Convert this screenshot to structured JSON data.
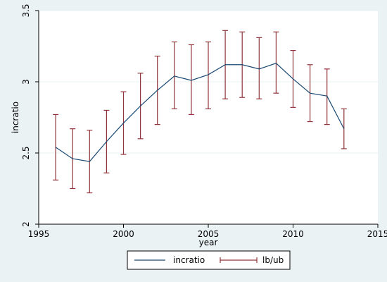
{
  "chart_data": {
    "type": "line",
    "title": "",
    "xlabel": "year",
    "ylabel": "incratio",
    "xlim": [
      1995,
      2015
    ],
    "ylim": [
      2,
      3.5
    ],
    "xticks": [
      "1995",
      "2000",
      "2005",
      "2010",
      "2015"
    ],
    "yticks": [
      "2",
      "2.5",
      "3",
      "3.5"
    ],
    "grid": true,
    "legend_position": "bottom",
    "colors": {
      "line": "#1a476f",
      "errorbar": "#90353b",
      "plot_bg": "#ffffff",
      "outer_bg": "#eaf2f3",
      "grid": "#eaf2f3"
    },
    "x": [
      1996,
      1997,
      1998,
      1999,
      2000,
      2001,
      2002,
      2003,
      2004,
      2005,
      2006,
      2007,
      2008,
      2009,
      2010,
      2011,
      2012,
      2013
    ],
    "series": [
      {
        "name": "incratio",
        "type": "line",
        "values": [
          2.54,
          2.46,
          2.44,
          2.58,
          2.71,
          2.83,
          2.94,
          3.04,
          3.01,
          3.05,
          3.12,
          3.12,
          3.09,
          3.13,
          3.02,
          2.92,
          2.9,
          2.67
        ]
      },
      {
        "name": "lb/ub",
        "type": "errorbar",
        "lb": [
          2.31,
          2.25,
          2.22,
          2.36,
          2.49,
          2.6,
          2.7,
          2.81,
          2.77,
          2.81,
          2.88,
          2.89,
          2.88,
          2.92,
          2.82,
          2.72,
          2.7,
          2.53
        ],
        "ub": [
          2.77,
          2.67,
          2.66,
          2.8,
          2.93,
          3.06,
          3.18,
          3.28,
          3.26,
          3.28,
          3.36,
          3.35,
          3.31,
          3.35,
          3.22,
          3.12,
          3.09,
          2.81
        ]
      }
    ]
  }
}
